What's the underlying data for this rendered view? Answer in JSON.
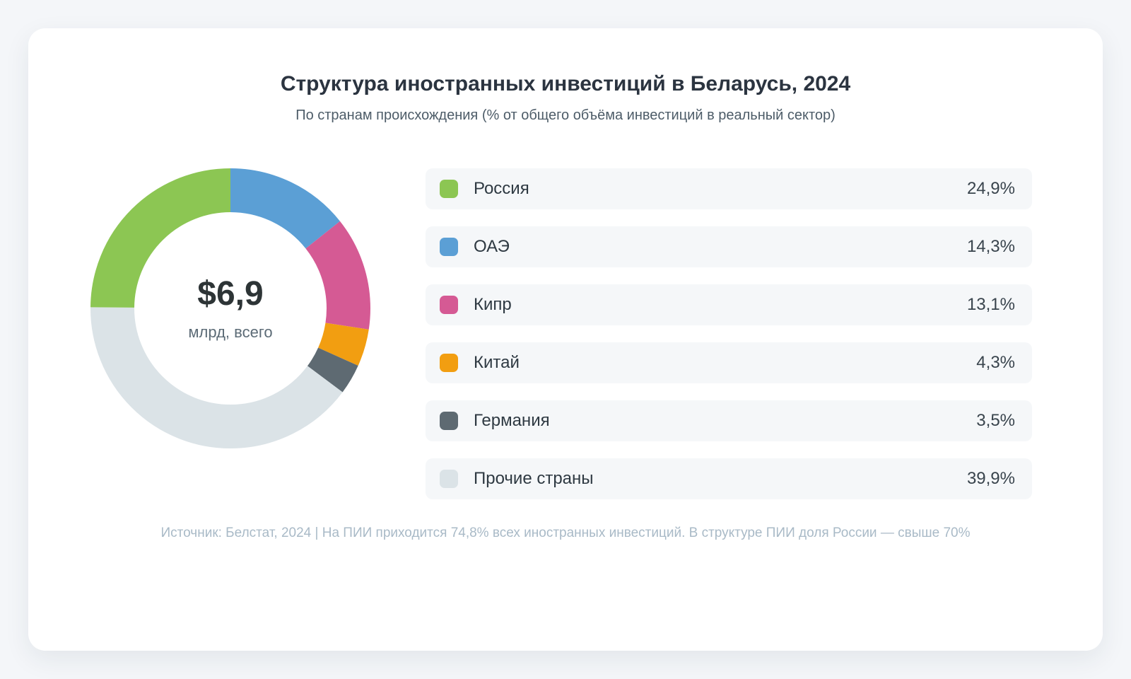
{
  "title": "Структура иностранных инвестиций в Беларусь, 2024",
  "subtitle": "По странам происхождения (% от общего объёма инвестиций в реальный сектор)",
  "footer": "Источник: Белстат, 2024 | На ПИИ приходится 74,8% всех иностранных инвестиций. В структуре ПИИ доля России — свыше 70%",
  "chart_data": {
    "type": "pie",
    "variant": "donut",
    "title": "Структура иностранных инвестиций в Беларусь, 2024",
    "subtitle": "По странам происхождения (% от общего объёма инвестиций в реальный сектор)",
    "center_value": "$6,9",
    "center_label": "млрд, всего",
    "categories": [
      "Россия",
      "ОАЭ",
      "Кипр",
      "Китай",
      "Германия",
      "Прочие страны"
    ],
    "values": [
      24.9,
      14.3,
      13.1,
      4.3,
      3.5,
      39.9
    ],
    "value_labels": [
      "24,9%",
      "14,3%",
      "13,1%",
      "4,3%",
      "3,5%",
      "39,9%"
    ],
    "colors": [
      "#8CC653",
      "#5B9FD5",
      "#D55A94",
      "#F29E11",
      "#5E6A72",
      "#DBE3E7"
    ],
    "draw_order_from_top_clockwise": [
      1,
      2,
      3,
      4,
      5,
      0
    ],
    "legend_position": "right",
    "background_card_color": "#FFFFFF",
    "legend_row_color": "#F5F7F9"
  }
}
